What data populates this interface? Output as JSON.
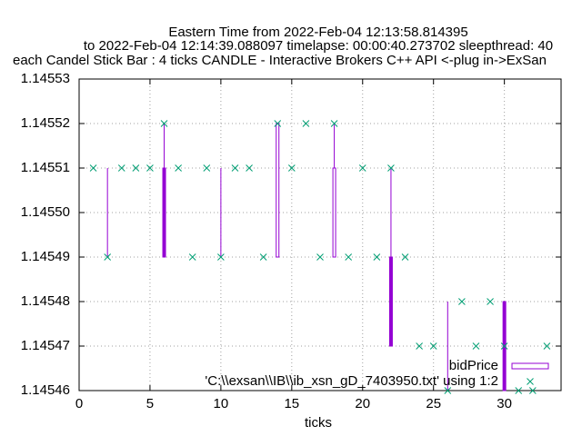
{
  "chart_data": {
    "type": "candlestick",
    "title": [
      "Eastern Time from 2022-Feb-04 12:13:58.814395",
      "to 2022-Feb-04 12:14:39.088097 timelapse: 00:00:40.273702  sleepthread: 40",
      "each Candel Stick Bar : 4 ticks CANDLE - Interactive Brokers C++ API <-plug in->ExSan"
    ],
    "xlabel": "ticks",
    "xlim": [
      0,
      34
    ],
    "xticks": [
      0,
      5,
      10,
      15,
      20,
      25,
      30
    ],
    "ylim": [
      1.14546,
      1.14553
    ],
    "yticks": [
      1.14546,
      1.14547,
      1.14548,
      1.14549,
      {
        "value": 1.1455,
        "label": "1.14550"
      },
      1.14551,
      1.14552,
      1.14553
    ],
    "grid": true,
    "legend": "bottom-right",
    "series": [
      {
        "name": "bidPrice",
        "type": "candlestick",
        "color": "#9400d3",
        "x": [
          2,
          6,
          10,
          14,
          18,
          22,
          26,
          30
        ],
        "open": [
          1.14551,
          1.14551,
          1.14551,
          1.14549,
          1.14549,
          1.14549,
          1.14547,
          1.14548
        ],
        "high": [
          1.14551,
          1.14552,
          1.14551,
          1.14552,
          1.14552,
          1.14551,
          1.14548,
          1.14548
        ],
        "low": [
          1.14549,
          1.14549,
          1.14549,
          1.14549,
          1.14549,
          1.14547,
          1.14546,
          1.14546
        ],
        "close": [
          1.14551,
          1.14549,
          1.14551,
          1.14552,
          1.14551,
          1.14547,
          1.14547,
          1.14546
        ]
      },
      {
        "name": "'C:\\\\exsan\\\\IB\\\\ib_xsn_gD_7403950.txt' using 1:2",
        "type": "scatter",
        "color": "#009e73",
        "x": [
          1,
          2,
          3,
          4,
          5,
          6,
          7,
          8,
          9,
          10,
          11,
          12,
          13,
          14,
          15,
          16,
          17,
          18,
          19,
          20,
          21,
          22,
          23,
          24,
          25,
          26,
          27,
          28,
          29,
          30,
          31,
          32,
          33
        ],
        "values": [
          1.14551,
          1.14549,
          1.14551,
          1.14551,
          1.14551,
          1.14552,
          1.14551,
          1.14549,
          1.14551,
          1.14549,
          1.14551,
          1.14551,
          1.14549,
          1.14552,
          1.14551,
          1.14552,
          1.14549,
          1.14552,
          1.14549,
          1.14551,
          1.14549,
          1.14551,
          1.14549,
          1.14547,
          1.14547,
          1.14546,
          1.14548,
          1.14547,
          1.14548,
          1.14547,
          1.14546,
          1.14546,
          1.14547
        ]
      }
    ]
  }
}
